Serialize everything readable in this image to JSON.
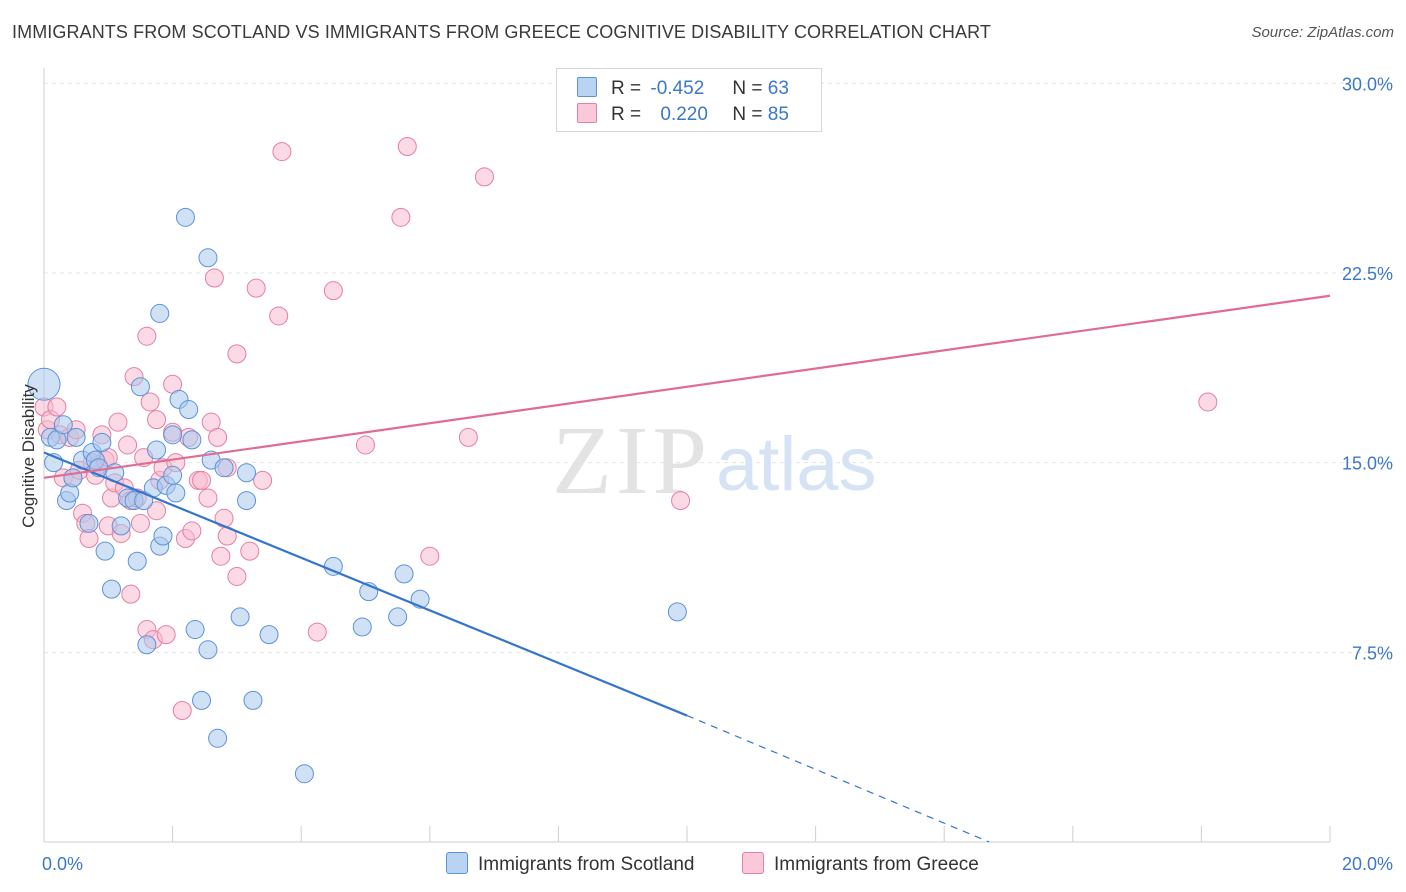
{
  "title": "IMMIGRANTS FROM SCOTLAND VS IMMIGRANTS FROM GREECE COGNITIVE DISABILITY CORRELATION CHART",
  "source": "Source: ZipAtlas.com",
  "watermark": {
    "zip": "ZIP",
    "atlas": "atlas"
  },
  "legend": {
    "scotland": {
      "r_label": "R =",
      "r_value": "-0.452",
      "n_label": "N =",
      "n_value": "63"
    },
    "greece": {
      "r_label": "R =",
      "r_value": "0.220",
      "n_label": "N =",
      "n_value": "85"
    }
  },
  "colors": {
    "scotland_fill": "#a9c8ef",
    "scotland_stroke": "#5b93d8",
    "scotland_line": "#3375cc",
    "greece_fill": "#f7bcd0",
    "greece_stroke": "#e57fa3",
    "greece_line": "#e06b95",
    "axis_label": "#3b78c9",
    "grid": "#e4e4e4"
  },
  "chart_data": {
    "type": "scatter",
    "title": "IMMIGRANTS FROM SCOTLAND VS IMMIGRANTS FROM GREECE COGNITIVE DISABILITY CORRELATION CHART",
    "xlabel": "",
    "ylabel": "Cognitive Disability",
    "xlim": [
      0,
      20
    ],
    "ylim": [
      0,
      31
    ],
    "x_tick_labels": [
      "0.0%",
      "20.0%"
    ],
    "y_ticks": [
      7.5,
      15.0,
      22.5,
      30.0
    ],
    "y_tick_labels": [
      "7.5%",
      "15.0%",
      "22.5%",
      "30.0%"
    ],
    "grid": true,
    "legend_position": "bottom",
    "series": [
      {
        "name": "Immigrants from Scotland",
        "trend": {
          "x": [
            0,
            10.0
          ],
          "y": [
            15.4,
            5.0
          ],
          "dashed_to": [
            14.7,
            0.0
          ]
        },
        "points": [
          [
            0.0,
            18.1
          ],
          [
            0.1,
            16.0
          ],
          [
            0.15,
            15.0
          ],
          [
            0.2,
            15.9
          ],
          [
            0.3,
            16.5
          ],
          [
            0.35,
            13.5
          ],
          [
            0.4,
            13.8
          ],
          [
            0.45,
            14.4
          ],
          [
            0.5,
            16.0
          ],
          [
            0.6,
            15.1
          ],
          [
            0.7,
            12.6
          ],
          [
            0.75,
            15.4
          ],
          [
            0.8,
            15.1
          ],
          [
            0.85,
            14.8
          ],
          [
            0.9,
            15.8
          ],
          [
            0.95,
            11.5
          ],
          [
            1.05,
            10.0
          ],
          [
            1.1,
            14.6
          ],
          [
            1.2,
            12.5
          ],
          [
            1.3,
            13.6
          ],
          [
            1.4,
            13.5
          ],
          [
            1.45,
            11.1
          ],
          [
            1.5,
            18.0
          ],
          [
            1.55,
            13.5
          ],
          [
            1.6,
            7.8
          ],
          [
            1.7,
            14.0
          ],
          [
            1.75,
            15.5
          ],
          [
            1.8,
            11.7
          ],
          [
            1.8,
            20.9
          ],
          [
            1.85,
            12.1
          ],
          [
            1.9,
            14.1
          ],
          [
            2.0,
            16.1
          ],
          [
            2.0,
            14.5
          ],
          [
            2.05,
            13.8
          ],
          [
            2.1,
            17.5
          ],
          [
            2.2,
            24.7
          ],
          [
            2.25,
            17.1
          ],
          [
            2.3,
            15.9
          ],
          [
            2.35,
            8.4
          ],
          [
            2.45,
            5.6
          ],
          [
            2.55,
            7.6
          ],
          [
            2.55,
            23.1
          ],
          [
            2.6,
            15.1
          ],
          [
            2.7,
            4.1
          ],
          [
            2.8,
            14.8
          ],
          [
            3.05,
            8.9
          ],
          [
            3.15,
            13.5
          ],
          [
            3.15,
            14.6
          ],
          [
            3.25,
            5.6
          ],
          [
            3.5,
            8.2
          ],
          [
            4.05,
            2.7
          ],
          [
            4.5,
            10.9
          ],
          [
            4.95,
            8.5
          ],
          [
            5.05,
            9.9
          ],
          [
            5.5,
            8.9
          ],
          [
            5.6,
            10.6
          ],
          [
            5.85,
            9.6
          ],
          [
            9.85,
            9.1
          ]
        ]
      },
      {
        "name": "Immigrants from Greece",
        "trend": {
          "x": [
            0,
            20
          ],
          "y": [
            14.4,
            21.6
          ]
        },
        "points": [
          [
            0.0,
            17.2
          ],
          [
            0.05,
            16.3
          ],
          [
            0.1,
            16.7
          ],
          [
            0.2,
            17.2
          ],
          [
            0.25,
            16.1
          ],
          [
            0.3,
            14.4
          ],
          [
            0.4,
            16.0
          ],
          [
            0.45,
            14.4
          ],
          [
            0.5,
            16.3
          ],
          [
            0.55,
            14.7
          ],
          [
            0.6,
            13.0
          ],
          [
            0.65,
            12.6
          ],
          [
            0.7,
            12.0
          ],
          [
            0.75,
            15.0
          ],
          [
            0.8,
            14.5
          ],
          [
            0.85,
            14.9
          ],
          [
            0.9,
            16.1
          ],
          [
            0.95,
            15.1
          ],
          [
            1.0,
            12.5
          ],
          [
            1.0,
            15.2
          ],
          [
            1.05,
            13.6
          ],
          [
            1.1,
            14.2
          ],
          [
            1.15,
            16.6
          ],
          [
            1.2,
            12.2
          ],
          [
            1.25,
            14.0
          ],
          [
            1.3,
            15.7
          ],
          [
            1.35,
            13.5
          ],
          [
            1.35,
            9.8
          ],
          [
            1.4,
            18.4
          ],
          [
            1.45,
            13.6
          ],
          [
            1.5,
            12.6
          ],
          [
            1.55,
            15.2
          ],
          [
            1.6,
            8.4
          ],
          [
            1.6,
            20.0
          ],
          [
            1.65,
            17.4
          ],
          [
            1.7,
            8.0
          ],
          [
            1.75,
            13.1
          ],
          [
            1.75,
            16.7
          ],
          [
            1.8,
            14.3
          ],
          [
            1.85,
            14.8
          ],
          [
            1.9,
            8.2
          ],
          [
            2.0,
            16.2
          ],
          [
            2.0,
            18.1
          ],
          [
            2.05,
            15.0
          ],
          [
            2.15,
            5.2
          ],
          [
            2.2,
            12.0
          ],
          [
            2.25,
            16.0
          ],
          [
            2.3,
            12.3
          ],
          [
            2.4,
            14.3
          ],
          [
            2.45,
            14.3
          ],
          [
            2.55,
            13.6
          ],
          [
            2.6,
            16.6
          ],
          [
            2.65,
            22.3
          ],
          [
            2.7,
            16.0
          ],
          [
            2.75,
            11.3
          ],
          [
            2.8,
            12.8
          ],
          [
            2.85,
            14.8
          ],
          [
            2.85,
            12.1
          ],
          [
            3.0,
            10.5
          ],
          [
            3.0,
            19.3
          ],
          [
            3.2,
            11.5
          ],
          [
            3.3,
            21.9
          ],
          [
            3.4,
            14.3
          ],
          [
            3.65,
            20.8
          ],
          [
            3.7,
            27.3
          ],
          [
            4.25,
            8.3
          ],
          [
            4.5,
            21.8
          ],
          [
            5.0,
            15.7
          ],
          [
            5.55,
            24.7
          ],
          [
            5.65,
            27.5
          ],
          [
            6.0,
            11.3
          ],
          [
            6.6,
            16.0
          ],
          [
            6.85,
            26.3
          ],
          [
            9.9,
            13.5
          ],
          [
            18.1,
            17.4
          ]
        ]
      }
    ]
  }
}
